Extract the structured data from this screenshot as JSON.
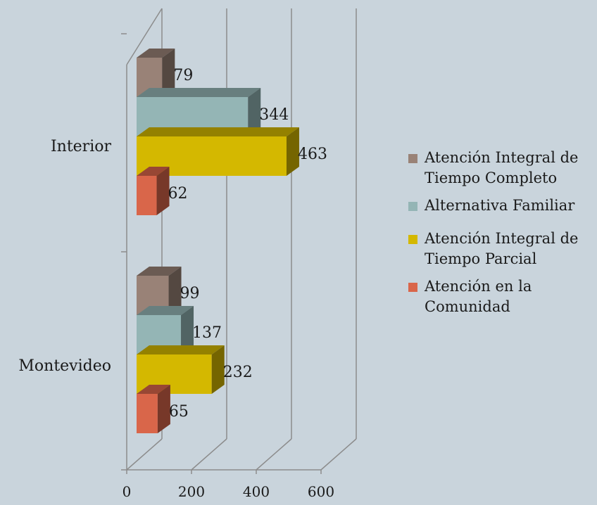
{
  "chart_data": {
    "type": "bar",
    "orientation": "horizontal",
    "style": "3d-clustered",
    "categories": [
      "Interior",
      "Montevideo"
    ],
    "series": [
      {
        "name": "Atención Integral de Tiempo Completo",
        "color": "#998277",
        "values": [
          79,
          99
        ]
      },
      {
        "name": "Alternativa Familiar",
        "color": "#94b5b5",
        "values": [
          344,
          137
        ]
      },
      {
        "name": "Atención Integral de Tiempo Parcial",
        "color": "#d4b800",
        "values": [
          463,
          232
        ]
      },
      {
        "name": "Atención en la Comunidad",
        "color": "#d9664a",
        "values": [
          62,
          65
        ]
      }
    ],
    "x_ticks": [
      "0",
      "200",
      "400",
      "600"
    ],
    "xlim": [
      0,
      600
    ],
    "grid": true,
    "legend_position": "right",
    "title": "",
    "xlabel": "",
    "ylabel": ""
  }
}
